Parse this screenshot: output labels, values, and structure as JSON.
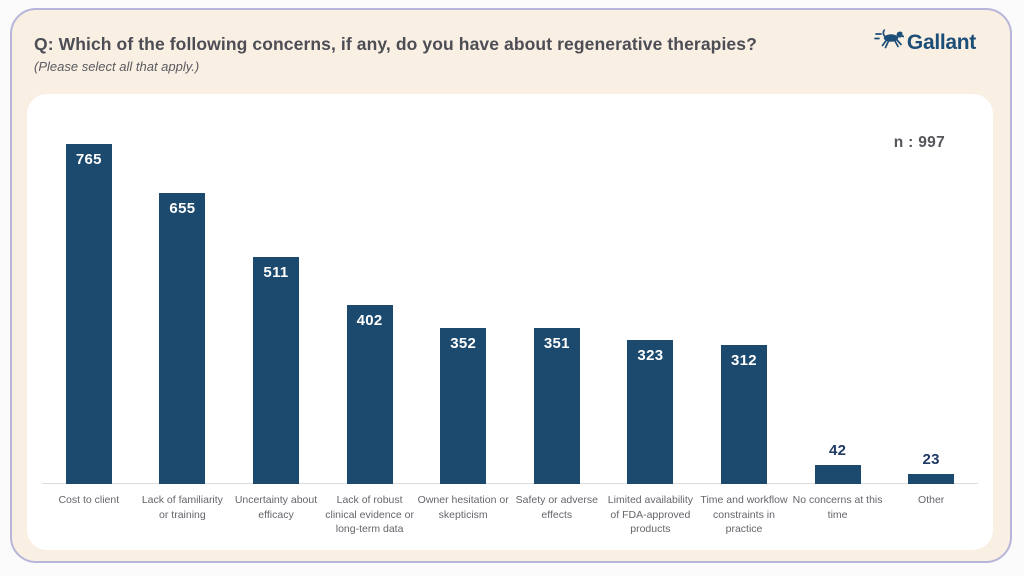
{
  "header": {
    "title": "Q: Which of the following concerns, if any, do you have about regenerative therapies?",
    "subtitle": "(Please select all that apply.)"
  },
  "logo": {
    "brand": "Gallant",
    "icon": "running-dog-icon"
  },
  "chart_data": {
    "type": "bar",
    "title": "",
    "sample_label": "n : 997",
    "categories": [
      "Cost to client",
      "Lack of familiarity or training",
      "Uncertainty about efficacy",
      "Lack of robust clinical evidence or long-term data",
      "Owner hesitation or skepticism",
      "Safety or adverse effects",
      "Limited availability of FDA-approved products",
      "Time and workflow constraints in practice",
      "No concerns at this time",
      "Other"
    ],
    "values": [
      765,
      655,
      511,
      402,
      352,
      351,
      323,
      312,
      42,
      23
    ],
    "ylim": [
      0,
      800
    ],
    "grid": false,
    "legend_position": "none",
    "value_labels": "on-bars"
  },
  "colors": {
    "bar": "#1c4a6e",
    "value_label_inside": "#ffffff",
    "value_label_outside": "#1e3a64",
    "card_background": "#f9efe3",
    "card_border": "#b7b5d9",
    "panel_background": "#ffffff",
    "brand_navy": "#1d4e78",
    "title_text": "#4d4d55",
    "category_text": "#65656c",
    "axis_line": "#dcdcdc"
  }
}
